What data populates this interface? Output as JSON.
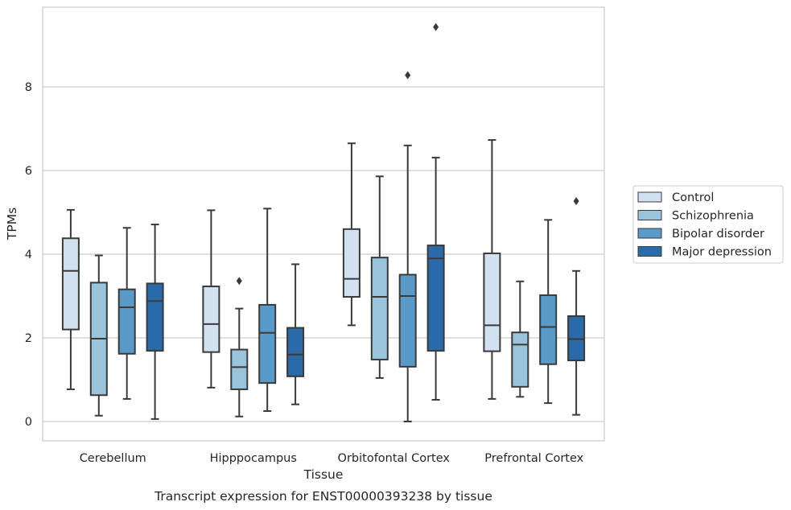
{
  "caption": "Transcript expression for ENST00000393238 by tissue",
  "chart_data": {
    "type": "box",
    "xlabel": "Tissue",
    "ylabel": "TPMs",
    "ylim": [
      -0.45,
      9.9
    ],
    "yticks": [
      0,
      2,
      4,
      6,
      8
    ],
    "grid": "horizontal",
    "legend_placement": "right",
    "categories": [
      "Cerebellum",
      "Hipppocampus",
      "Orbitofontal Cortex",
      "Prefrontal Cortex"
    ],
    "series": [
      {
        "name": "Control",
        "color": "#d1e1f0",
        "boxes": [
          {
            "whisker_low": 0.77,
            "q1": 2.2,
            "median": 3.6,
            "q3": 4.38,
            "whisker_high": 5.06,
            "outliers": []
          },
          {
            "whisker_low": 0.81,
            "q1": 1.66,
            "median": 2.33,
            "q3": 3.23,
            "whisker_high": 5.05,
            "outliers": []
          },
          {
            "whisker_low": 2.3,
            "q1": 2.98,
            "median": 3.41,
            "q3": 4.6,
            "whisker_high": 6.65,
            "outliers": []
          },
          {
            "whisker_low": 0.54,
            "q1": 1.68,
            "median": 2.3,
            "q3": 4.02,
            "whisker_high": 6.73,
            "outliers": []
          }
        ]
      },
      {
        "name": "Schizophrenia",
        "color": "#9ac3dc",
        "boxes": [
          {
            "whisker_low": 0.14,
            "q1": 0.63,
            "median": 1.98,
            "q3": 3.32,
            "whisker_high": 3.97,
            "outliers": []
          },
          {
            "whisker_low": 0.12,
            "q1": 0.77,
            "median": 1.3,
            "q3": 1.72,
            "whisker_high": 2.7,
            "outliers": [
              3.36
            ]
          },
          {
            "whisker_low": 1.04,
            "q1": 1.48,
            "median": 2.98,
            "q3": 3.92,
            "whisker_high": 5.86,
            "outliers": []
          },
          {
            "whisker_low": 0.59,
            "q1": 0.83,
            "median": 1.84,
            "q3": 2.13,
            "whisker_high": 3.35,
            "outliers": []
          }
        ]
      },
      {
        "name": "Bipolar disorder",
        "color": "#5a9ac8",
        "boxes": [
          {
            "whisker_low": 0.54,
            "q1": 1.62,
            "median": 2.73,
            "q3": 3.16,
            "whisker_high": 4.63,
            "outliers": []
          },
          {
            "whisker_low": 0.25,
            "q1": 0.92,
            "median": 2.12,
            "q3": 2.79,
            "whisker_high": 5.09,
            "outliers": []
          },
          {
            "whisker_low": 0.0,
            "q1": 1.31,
            "median": 3.0,
            "q3": 3.51,
            "whisker_high": 6.6,
            "outliers": [
              8.28
            ]
          },
          {
            "whisker_low": 0.44,
            "q1": 1.37,
            "median": 2.26,
            "q3": 3.02,
            "whisker_high": 4.82,
            "outliers": []
          }
        ]
      },
      {
        "name": "Major depression",
        "color": "#2a6aa8",
        "boxes": [
          {
            "whisker_low": 0.06,
            "q1": 1.69,
            "median": 2.88,
            "q3": 3.3,
            "whisker_high": 4.71,
            "outliers": []
          },
          {
            "whisker_low": 0.41,
            "q1": 1.08,
            "median": 1.6,
            "q3": 2.24,
            "whisker_high": 3.76,
            "outliers": []
          },
          {
            "whisker_low": 0.52,
            "q1": 1.69,
            "median": 3.9,
            "q3": 4.21,
            "whisker_high": 6.31,
            "outliers": [
              9.43
            ]
          },
          {
            "whisker_low": 0.16,
            "q1": 1.46,
            "median": 1.97,
            "q3": 2.52,
            "whisker_high": 3.6,
            "outliers": [
              5.27
            ]
          }
        ]
      }
    ]
  }
}
